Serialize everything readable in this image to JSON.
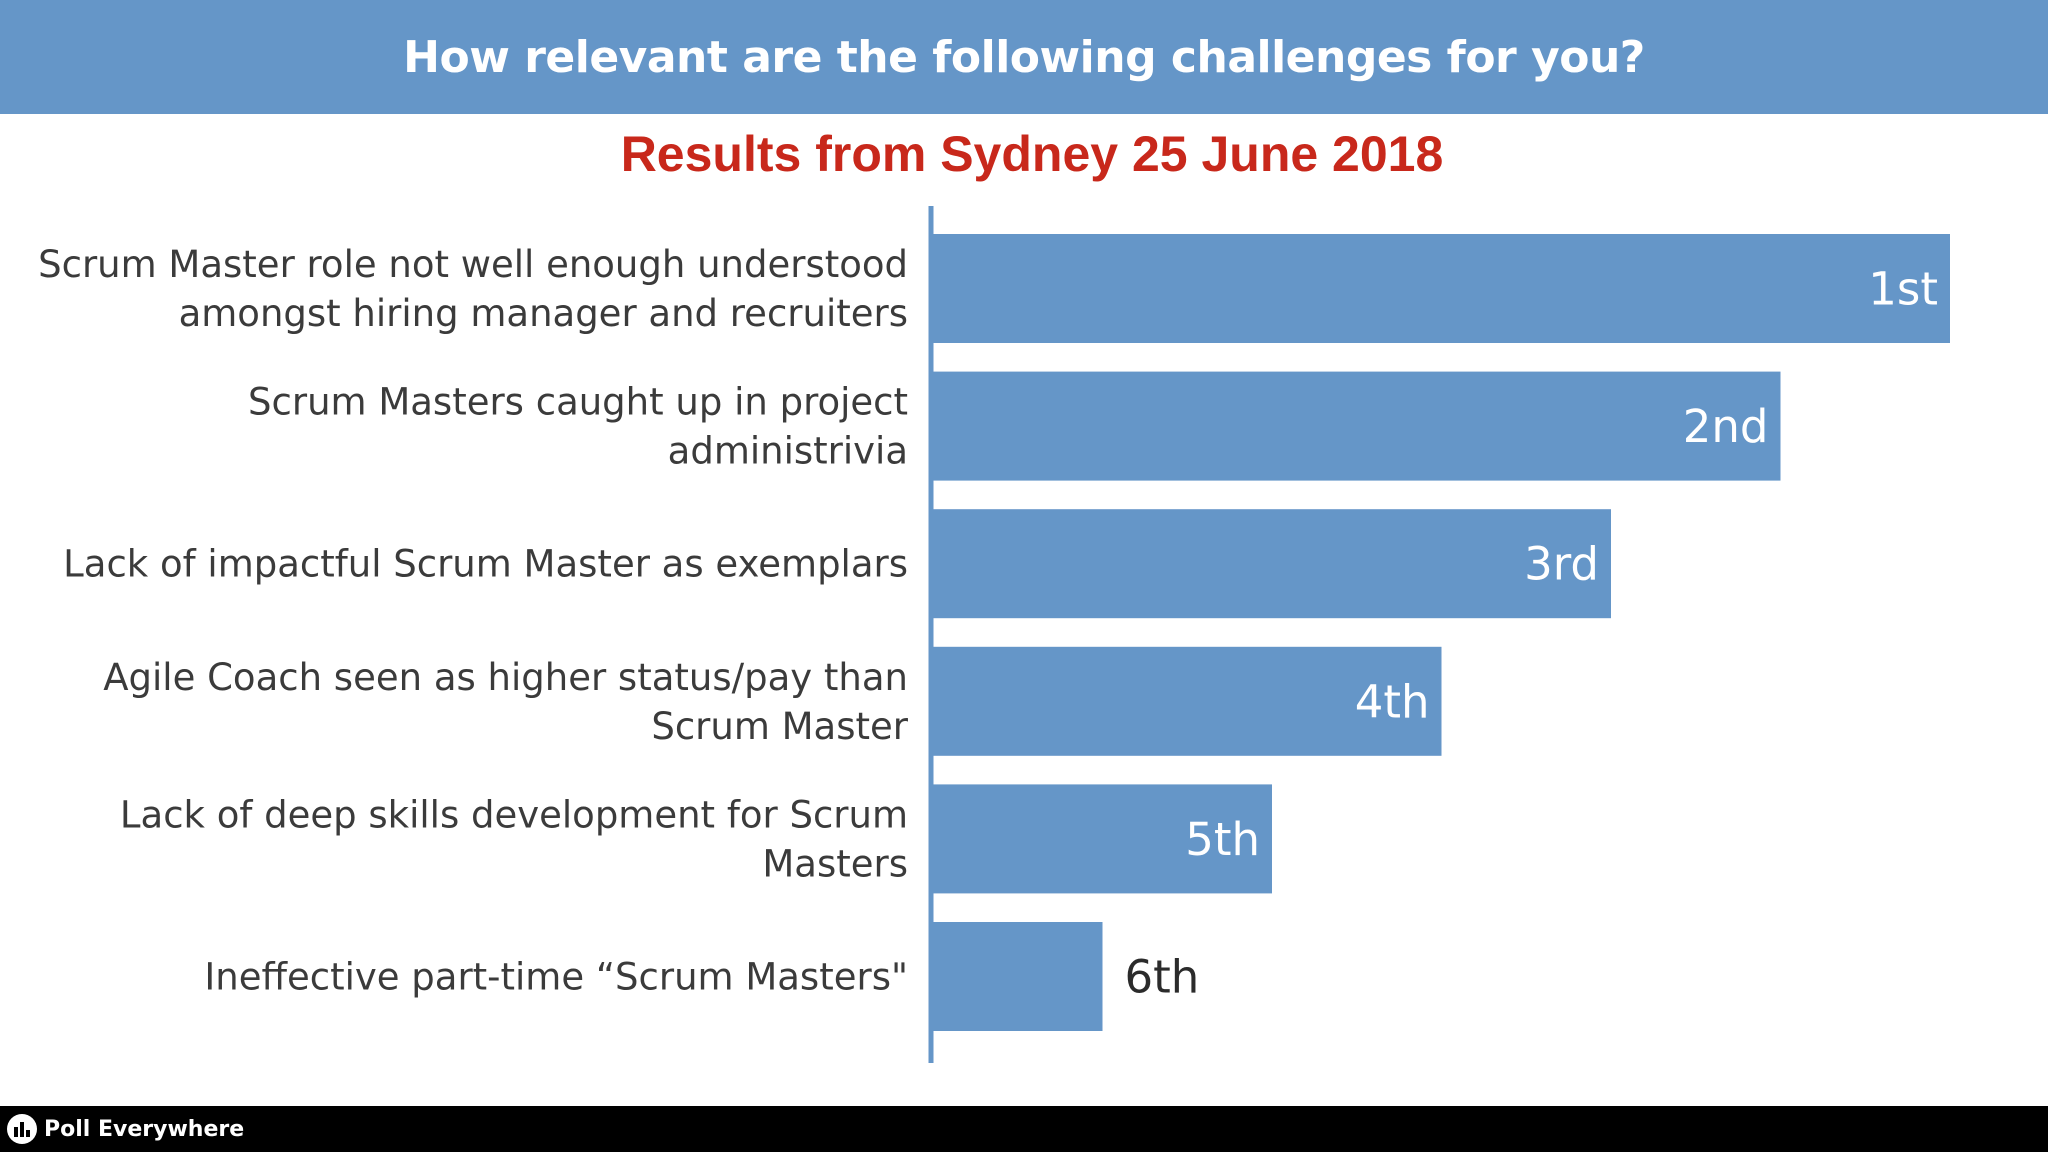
{
  "header": {
    "title": "How relevant are the following challenges for you?"
  },
  "subtitle": "Results from Sydney 25 June 2018",
  "footer": {
    "brand": "Poll Everywhere",
    "logo_icon": "poll-everywhere-logo-icon"
  },
  "colors": {
    "header_bg": "#6596c8",
    "bar": "#6596c8",
    "subtitle": "#c8281b",
    "footer_bg": "#000000"
  },
  "chart_data": {
    "type": "bar",
    "orientation": "horizontal",
    "title": "How relevant are the following challenges for you?",
    "subtitle": "Results from Sydney 25 June 2018",
    "categories": [
      [
        "Scrum Master role not well enough understood",
        "amongst hiring manager and recruiters"
      ],
      [
        "Scrum Masters caught up in project",
        "administrivia"
      ],
      [
        "Lack of impactful Scrum Master as exemplars"
      ],
      [
        "Agile Coach seen as higher status/pay than",
        "Scrum Master"
      ],
      [
        "Lack of deep skills development for Scrum",
        "Masters"
      ],
      [
        "Ineffective part-time “Scrum Masters\""
      ]
    ],
    "values": [
      6,
      5,
      4,
      3,
      2,
      1
    ],
    "value_labels": [
      "1st",
      "2nd",
      "3rd",
      "4th",
      "5th",
      "6th"
    ],
    "xlim": [
      0,
      6
    ],
    "grid": false,
    "legend": "none"
  }
}
